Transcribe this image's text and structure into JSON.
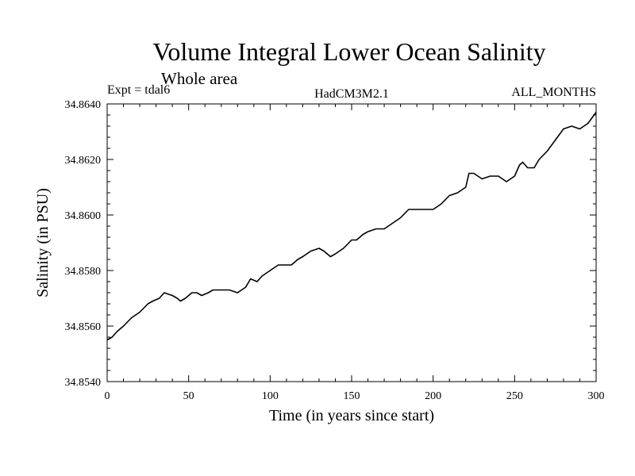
{
  "chart_data": {
    "type": "line",
    "title": "Volume Integral Lower Ocean Salinity",
    "subtitle": "Whole area",
    "experiment_label": "Expt = tdal6",
    "model_label": "HadCM3M2.1",
    "period_label": "ALL_MONTHS",
    "xlabel": "Time (in years since start)",
    "ylabel": "Salinity (in PSU)",
    "xlim": [
      0,
      300
    ],
    "ylim": [
      34.854,
      34.864
    ],
    "x_ticks": [
      0,
      50,
      100,
      150,
      200,
      250,
      300
    ],
    "x_tick_labels": [
      "0",
      "50",
      "100",
      "150",
      "200",
      "250",
      "300"
    ],
    "y_ticks": [
      34.854,
      34.856,
      34.858,
      34.86,
      34.862,
      34.864
    ],
    "y_tick_labels": [
      "34.8540",
      "34.8560",
      "34.8580",
      "34.8600",
      "34.8620",
      "34.8640"
    ],
    "series": [
      {
        "name": "Volume integral salinity",
        "x": [
          0,
          3,
          6,
          10,
          15,
          20,
          25,
          28,
          32,
          35,
          40,
          43,
          45,
          48,
          52,
          55,
          58,
          62,
          65,
          70,
          75,
          80,
          85,
          88,
          92,
          95,
          100,
          105,
          110,
          113,
          117,
          120,
          125,
          130,
          133,
          137,
          140,
          145,
          150,
          153,
          157,
          160,
          165,
          170,
          175,
          180,
          185,
          190,
          195,
          200,
          205,
          210,
          215,
          220,
          222,
          225,
          230,
          235,
          240,
          245,
          250,
          253,
          255,
          258,
          262,
          265,
          270,
          275,
          280,
          285,
          290,
          295,
          300
        ],
        "values": [
          34.8555,
          34.8556,
          34.8558,
          34.856,
          34.8563,
          34.8565,
          34.8568,
          34.8569,
          34.857,
          34.8572,
          34.8571,
          34.857,
          34.8569,
          34.857,
          34.8572,
          34.8572,
          34.8571,
          34.8572,
          34.8573,
          34.8573,
          34.8573,
          34.8572,
          34.8574,
          34.8577,
          34.8576,
          34.8578,
          34.858,
          34.8582,
          34.8582,
          34.8582,
          34.8584,
          34.8585,
          34.8587,
          34.8588,
          34.8587,
          34.8585,
          34.8586,
          34.8588,
          34.8591,
          34.8591,
          34.8593,
          34.8594,
          34.8595,
          34.8595,
          34.8597,
          34.8599,
          34.8602,
          34.8602,
          34.8602,
          34.8602,
          34.8604,
          34.8607,
          34.8608,
          34.861,
          34.8615,
          34.8615,
          34.8613,
          34.8614,
          34.8614,
          34.8612,
          34.8614,
          34.8618,
          34.8619,
          34.8617,
          34.8617,
          34.862,
          34.8623,
          34.8627,
          34.8631,
          34.8632,
          34.8631,
          34.8633,
          34.8637
        ]
      }
    ]
  }
}
